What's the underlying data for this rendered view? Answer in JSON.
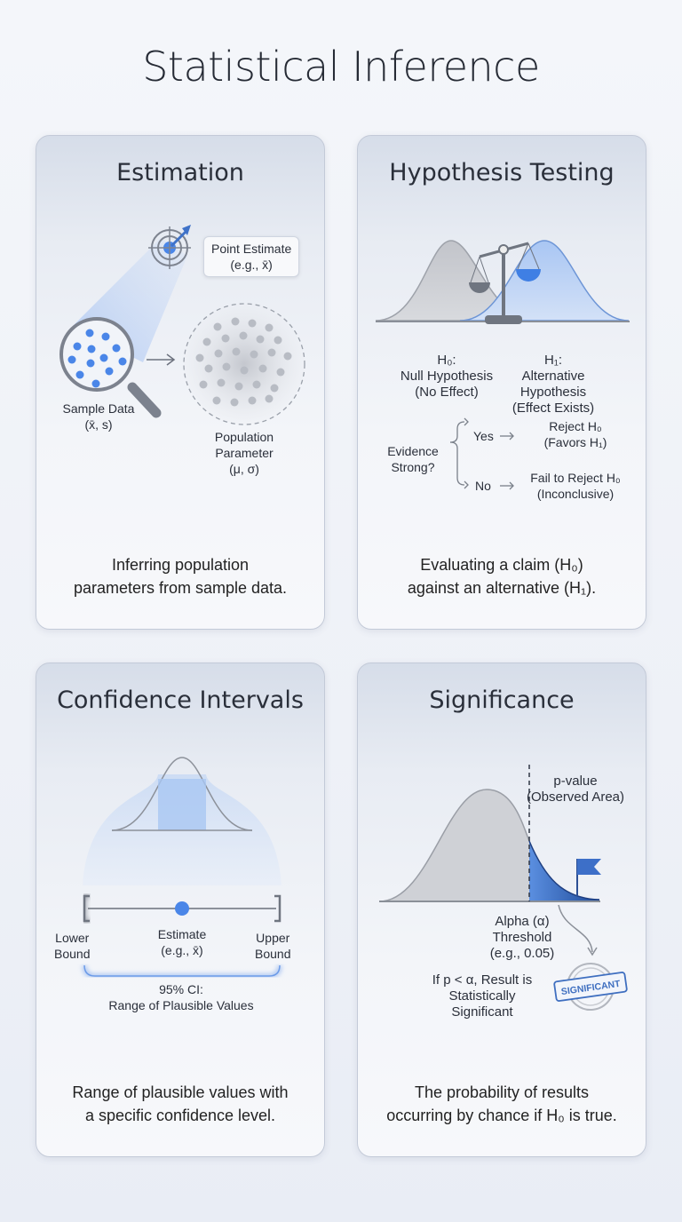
{
  "title": "Statistical Inference",
  "colors": {
    "accent": "#4a86e8",
    "dark_blue": "#2f5fb0",
    "gray": "#c9cbd0"
  },
  "cards": {
    "estimation": {
      "title": "Estimation",
      "point_estimate": "Point Estimate",
      "point_estimate_eg": "(e.g., x̄)",
      "sample_data": "Sample Data",
      "sample_stats": "(x̄, s)",
      "population_1": "Population",
      "population_2": "Parameter",
      "population_params": "(μ, σ)",
      "description_1": "Inferring population",
      "description_2": "parameters from sample data.",
      "icons": [
        "target-icon",
        "magnifier-icon",
        "arrow-right-icon"
      ]
    },
    "hypothesis": {
      "title": "Hypothesis Testing",
      "h0": "H₀:",
      "h0_name": "Null Hypothesis",
      "h0_desc": "(No Effect)",
      "h1": "H₁:",
      "h1_name_1": "Alternative",
      "h1_name_2": "Hypothesis",
      "h1_desc": "(Effect Exists)",
      "evidence_1": "Evidence",
      "evidence_2": "Strong?",
      "yes": "Yes",
      "no": "No",
      "reject": "Reject H₀",
      "reject_desc": "(Favors H₁)",
      "fail": "Fail to Reject H₀",
      "fail_desc": "(Inconclusive)",
      "description_1": "Evaluating a claim (H₀)",
      "description_2": "against an alternative (H₁).",
      "icons": [
        "scale-icon"
      ]
    },
    "confidence": {
      "title": "Confidence Intervals",
      "lower_1": "Lower",
      "lower_2": "Bound",
      "estimate": "Estimate",
      "estimate_eg": "(e.g., x̄)",
      "upper_1": "Upper",
      "upper_2": "Bound",
      "ci_1": "95% CI:",
      "ci_2": "Range of Plausible Values",
      "description_1": "Range of plausible values with",
      "description_2": "a specific confidence level."
    },
    "significance": {
      "title": "Significance",
      "pvalue": "p-value",
      "pvalue_desc": "(Observed Area)",
      "alpha_1": "Alpha (α)",
      "alpha_2": "Threshold",
      "alpha_3": "(e.g., 0.05)",
      "rule_1": "If p < α, Result is",
      "rule_2": "Statistically",
      "rule_3": "Significant",
      "stamp": "SIGNIFICANT",
      "description_1": "The probability of results",
      "description_2": "occurring by chance if H₀ is true.",
      "icons": [
        "flag-icon",
        "stamp-icon"
      ]
    }
  }
}
